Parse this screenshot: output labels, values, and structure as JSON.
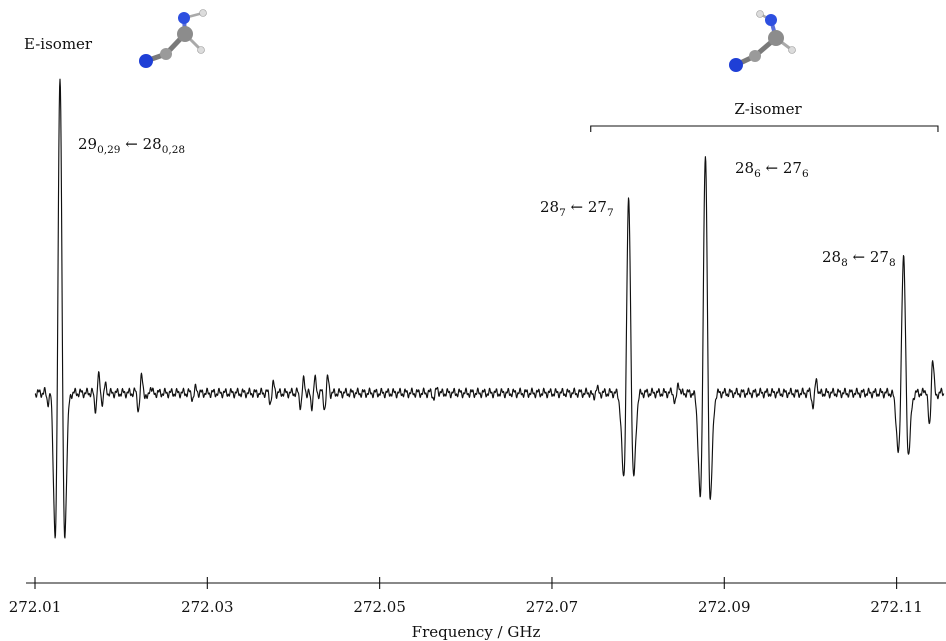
{
  "chart_data": {
    "type": "line",
    "title": "",
    "xlabel": "Frequency / GHz",
    "ylabel": "",
    "xlim": [
      272.01,
      272.1155
    ],
    "ylim": [
      -1.25,
      2.25
    ],
    "grid": false,
    "xticks": [
      "272.01",
      "272.03",
      "272.05",
      "272.07",
      "272.09",
      "272.11"
    ],
    "xtick_values": [
      272.01,
      272.03,
      272.05,
      272.07,
      272.09,
      272.11
    ],
    "series": [
      {
        "name": "",
        "lines": [
          {
            "center": 272.0129,
            "amp": 1.92,
            "width": 0.00032
          },
          {
            "center": 272.0789,
            "amp": 1.15,
            "width": 0.00034
          },
          {
            "center": 272.0878,
            "amp": 1.42,
            "width": 0.00034
          },
          {
            "center": 272.1108,
            "amp": 0.82,
            "width": 0.00034
          }
        ],
        "noise": [
          {
            "center": 272.0117,
            "amp": 0.07
          },
          {
            "center": 272.0172,
            "amp": 0.13
          },
          {
            "center": 272.018,
            "amp": 0.06
          },
          {
            "center": 272.0222,
            "amp": 0.13
          },
          {
            "center": 272.0232,
            "amp": 0.05
          },
          {
            "center": 272.0285,
            "amp": 0.04
          },
          {
            "center": 272.0375,
            "amp": 0.07
          },
          {
            "center": 272.041,
            "amp": 0.1
          },
          {
            "center": 272.0423,
            "amp": 0.11
          },
          {
            "center": 272.0438,
            "amp": 0.12
          },
          {
            "center": 272.0565,
            "amp": 0.04
          },
          {
            "center": 272.075,
            "amp": 0.04
          },
          {
            "center": 272.0845,
            "amp": 0.08
          },
          {
            "center": 272.1005,
            "amp": 0.11
          },
          {
            "center": 272.114,
            "amp": 0.28
          }
        ]
      }
    ],
    "annotations": [
      {
        "id": "e-isomer-label",
        "text": "E-isomer"
      },
      {
        "id": "z-isomer-label",
        "text": "Z-isomer"
      },
      {
        "id": "line-e",
        "main": "29",
        "sub": "0,29",
        "arrow": " ← ",
        "main2": "28",
        "sub2": "0,28",
        "x": 272.0129
      },
      {
        "id": "line-z7",
        "main": "28",
        "sub": "7",
        "arrow": " ← ",
        "main2": "27",
        "sub2": "7",
        "x": 272.0789
      },
      {
        "id": "line-z6",
        "main": "28",
        "sub": "6",
        "arrow": " ← ",
        "main2": "27",
        "sub2": "6",
        "x": 272.0878
      },
      {
        "id": "line-z8",
        "main": "28",
        "sub": "8",
        "arrow": " ← ",
        "main2": "27",
        "sub2": "8",
        "x": 272.1108
      }
    ],
    "bracket": {
      "label": "Z-isomer",
      "from": 272.0745,
      "to": 272.1148
    },
    "colors": {
      "trace": "#111111",
      "n_atom": "#1f3fd6",
      "c_atom": "#8c8c8c",
      "h_atom": "#d8d8d8"
    },
    "icons": [
      "molecule-e-icon",
      "molecule-z-icon"
    ]
  }
}
